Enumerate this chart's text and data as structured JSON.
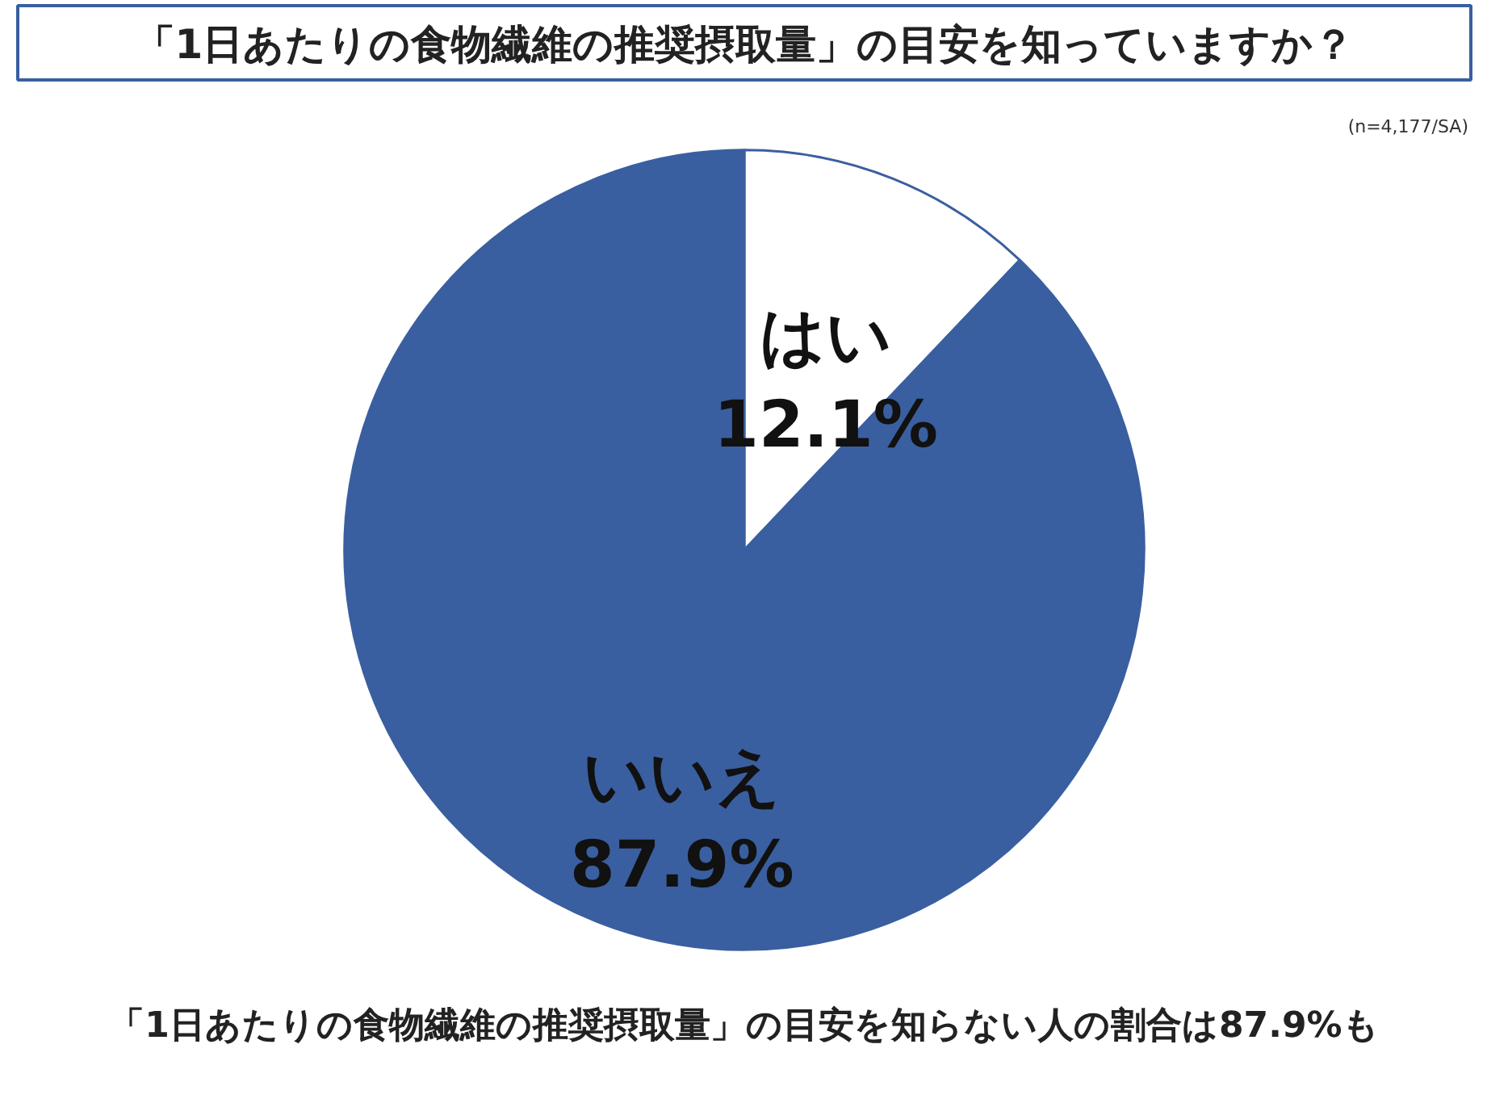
{
  "chart_data": {
    "type": "pie",
    "title": "「1日あたりの食物繊維の推奨摂取量」の目安を知っていますか？",
    "subtitle": "(n=4,177/SA)",
    "categories": [
      "はい",
      "いいえ"
    ],
    "values": [
      12.1,
      87.9
    ],
    "colors": [
      "#ffffff",
      "#3a5fa0"
    ],
    "value_labels": [
      "12.1%",
      "87.9%"
    ],
    "annotations": [
      "「1日あたりの食物繊維の推奨摂取量」の目安を知らない人の割合は87.9%も"
    ]
  }
}
